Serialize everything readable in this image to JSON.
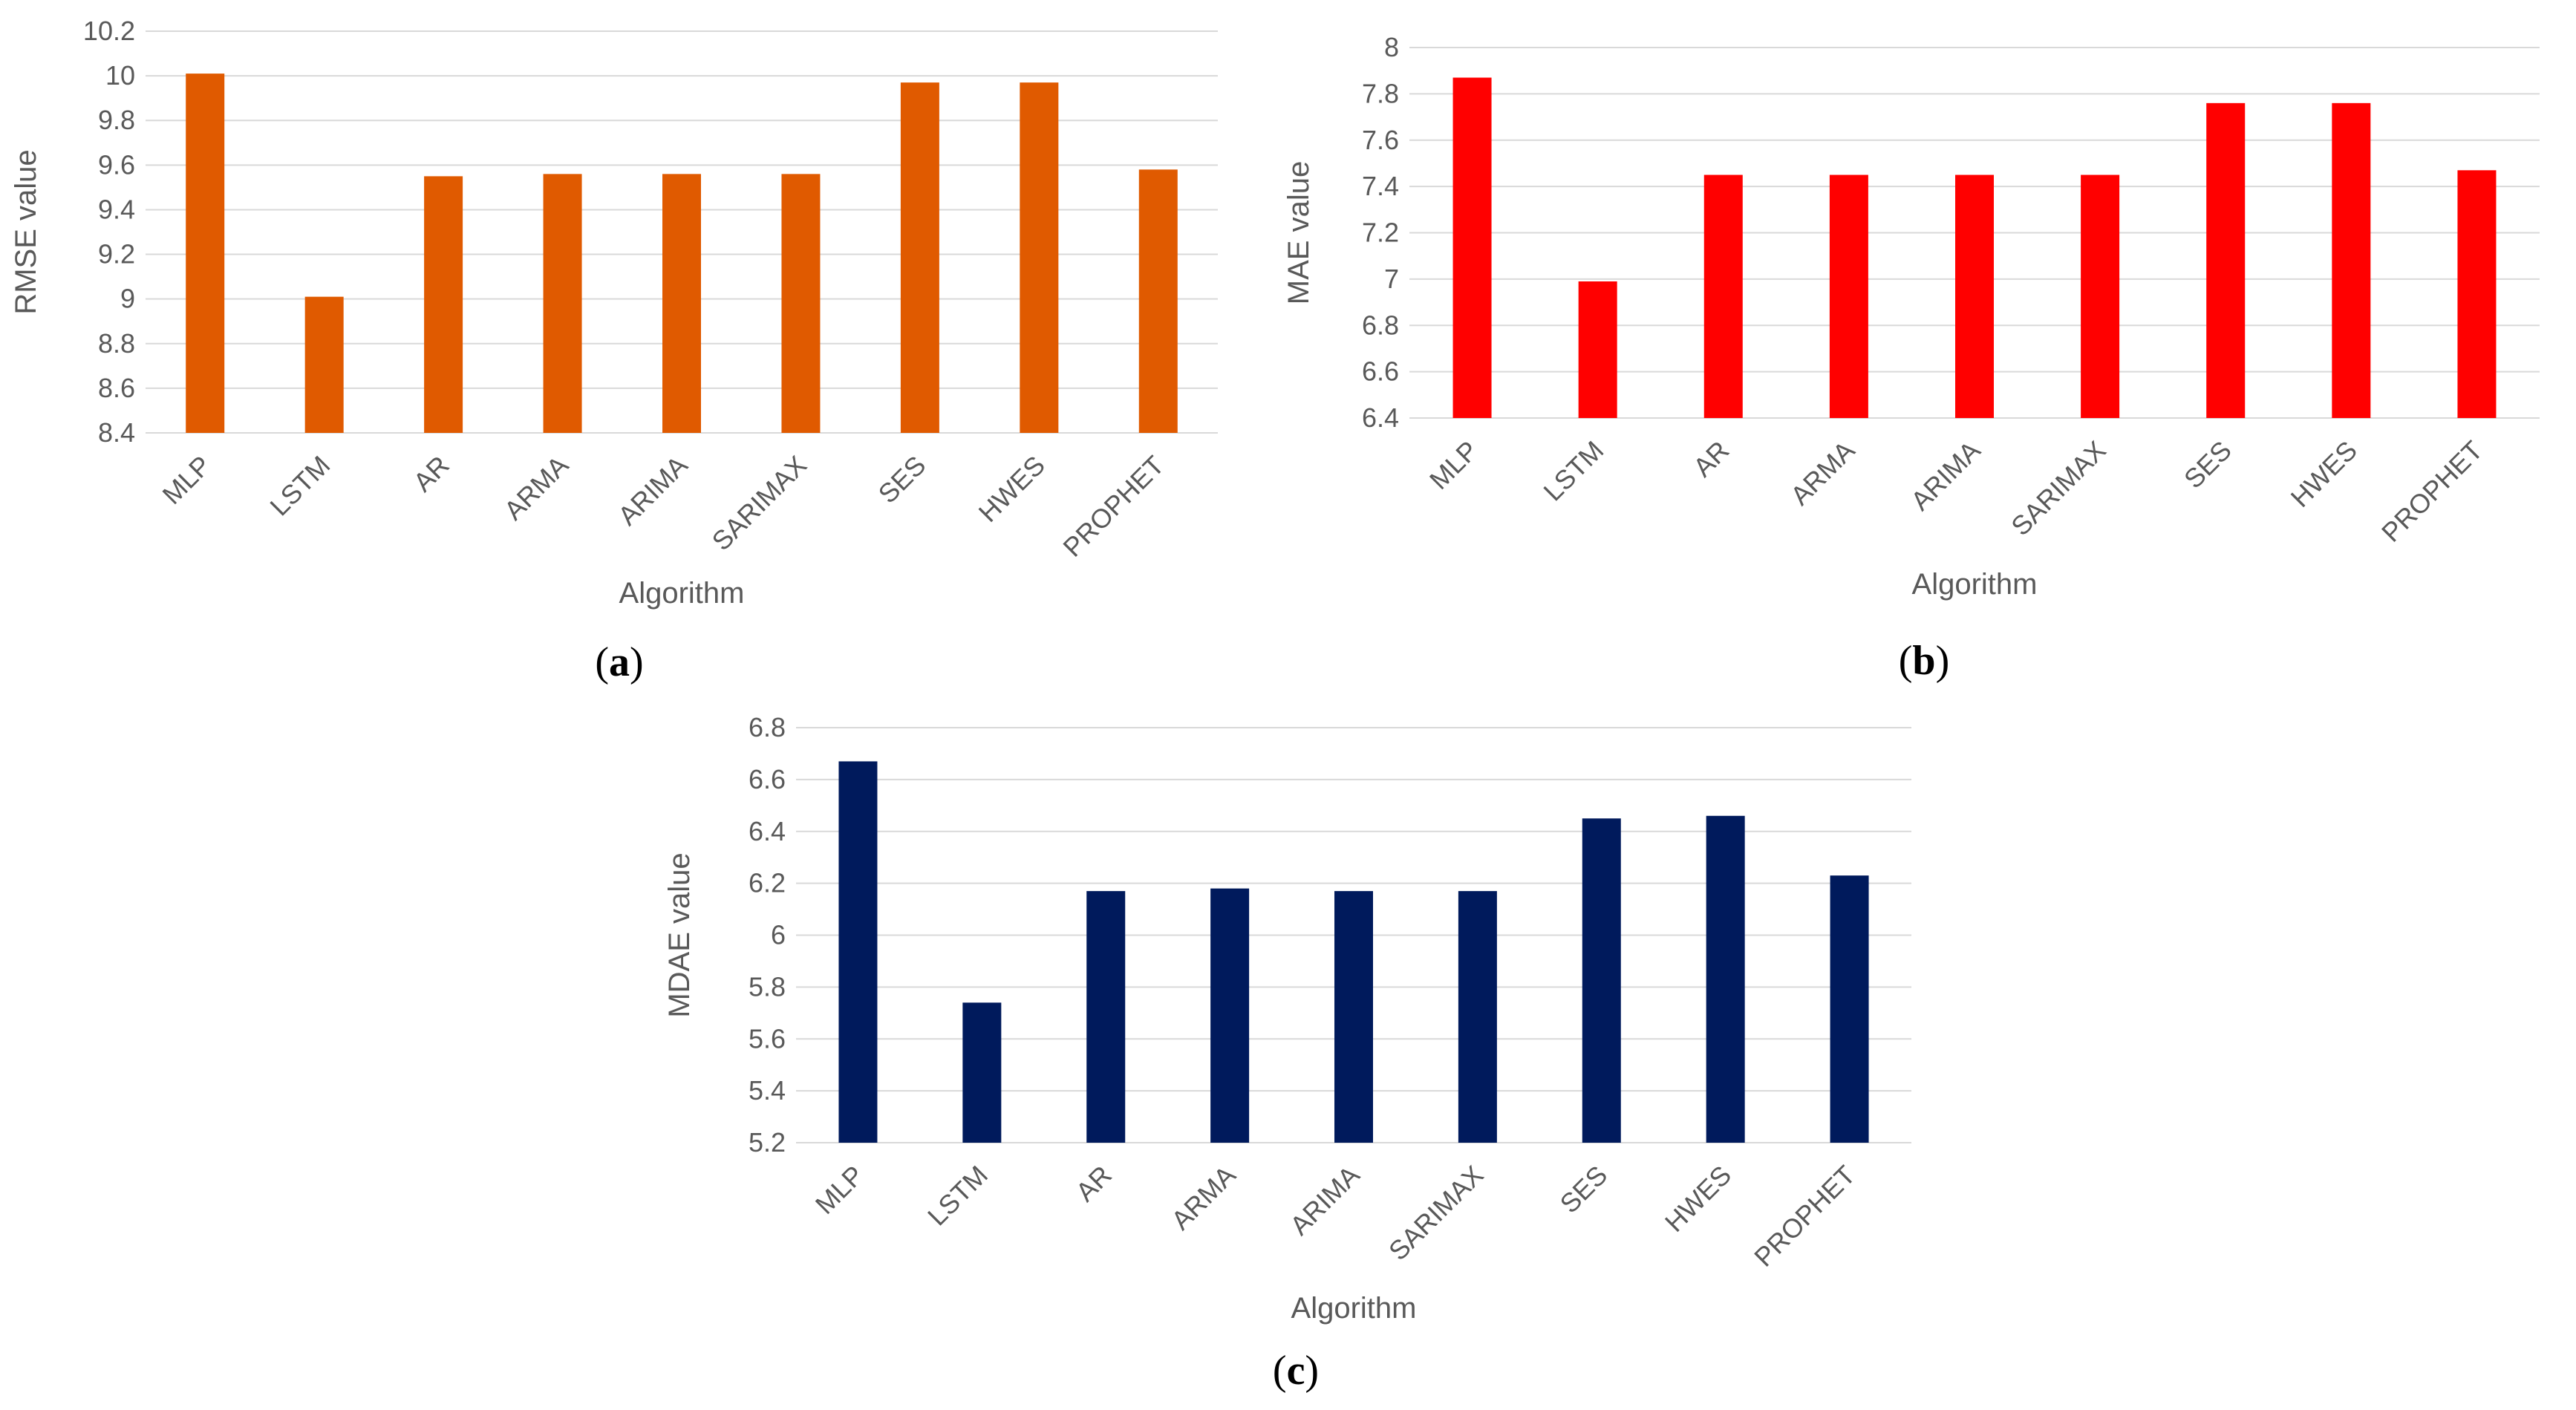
{
  "chart_data": [
    {
      "type": "bar",
      "panel": "a",
      "categories": [
        "MLP",
        "LSTM",
        "AR",
        "ARMA",
        "ARIMA",
        "SARIMAX",
        "SES",
        "HWES",
        "PROPHET"
      ],
      "values": [
        10.01,
        9.01,
        9.55,
        9.56,
        9.56,
        9.56,
        9.97,
        9.97,
        9.58
      ],
      "xlabel": "Algorithm",
      "ylabel": "RMSE value",
      "ylim": [
        8.4,
        10.2
      ],
      "yticks": [
        "8.4",
        "8.6",
        "8.8",
        "9",
        "9.2",
        "9.4",
        "9.6",
        "9.8",
        "10",
        "10.2"
      ],
      "color": "#E05A00",
      "caption_open": "(",
      "caption_letter": "a",
      "caption_close": ")"
    },
    {
      "type": "bar",
      "panel": "b",
      "categories": [
        "MLP",
        "LSTM",
        "AR",
        "ARMA",
        "ARIMA",
        "SARIMAX",
        "SES",
        "HWES",
        "PROPHET"
      ],
      "values": [
        7.87,
        6.99,
        7.45,
        7.45,
        7.45,
        7.45,
        7.76,
        7.76,
        7.47
      ],
      "xlabel": "Algorithm",
      "ylabel": "MAE value",
      "ylim": [
        6.4,
        8.0
      ],
      "yticks": [
        "6.4",
        "6.6",
        "6.8",
        "7",
        "7.2",
        "7.4",
        "7.6",
        "7.8",
        "8"
      ],
      "color": "#FF0000",
      "caption_open": "(",
      "caption_letter": "b",
      "caption_close": ")"
    },
    {
      "type": "bar",
      "panel": "c",
      "categories": [
        "MLP",
        "LSTM",
        "AR",
        "ARMA",
        "ARIMA",
        "SARIMAX",
        "SES",
        "HWES",
        "PROPHET"
      ],
      "values": [
        6.67,
        5.74,
        6.17,
        6.18,
        6.17,
        6.17,
        6.45,
        6.46,
        6.23
      ],
      "xlabel": "Algorithm",
      "ylabel": "MDAE value",
      "ylim": [
        5.2,
        6.8
      ],
      "yticks": [
        "5.2",
        "5.4",
        "5.6",
        "5.8",
        "6",
        "6.2",
        "6.4",
        "6.6",
        "6.8"
      ],
      "color": "#001A5C",
      "caption_open": "(",
      "caption_letter": "c",
      "caption_close": ")"
    }
  ]
}
